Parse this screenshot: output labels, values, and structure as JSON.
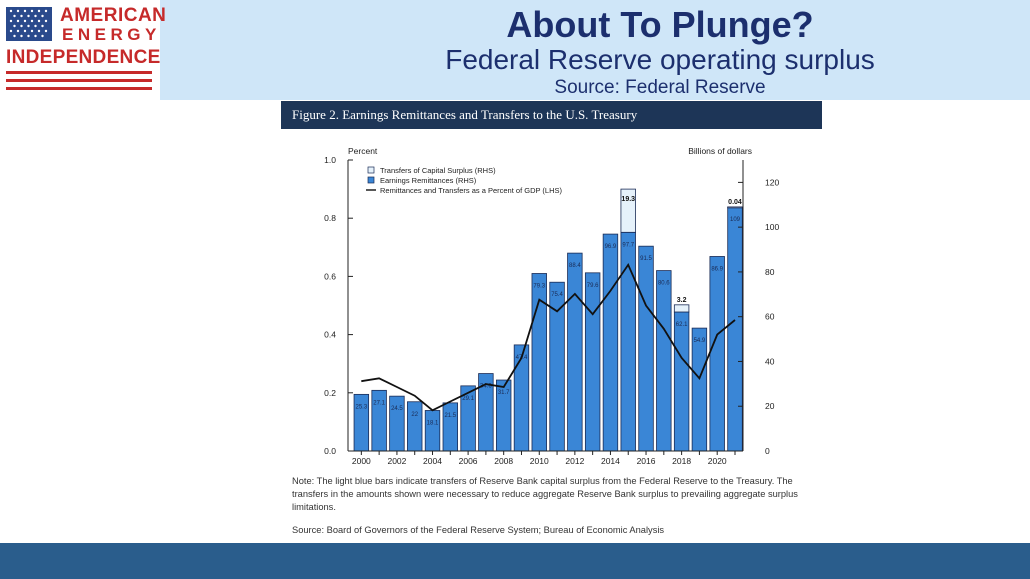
{
  "logo": {
    "line1": "AMERICAN",
    "line2": "ENERGY",
    "line3": "INDEPENDENCE",
    "colors": {
      "red": "#c62a2a",
      "blue": "#2a4a8c"
    }
  },
  "slide": {
    "title": "About To Plunge?",
    "subtitle": "Federal Reserve operating surplus",
    "source": "Source: Federal Reserve"
  },
  "figure": {
    "title": "Figure 2. Earnings Remittances and Transfers to the U.S. Treasury",
    "note": "Note: The light blue bars indicate transfers of Reserve Bank capital surplus from the Federal Reserve to the Treasury. The transfers in the amounts shown were necessary to reduce aggregate Reserve Bank surplus to prevailing aggregate surplus limitations.",
    "source": "Source: Board of Governors of the Federal Reserve System; Bureau of Economic Analysis"
  },
  "chart_data": {
    "type": "bar",
    "left_axis_label": "Percent",
    "right_axis_label": "Billions of dollars",
    "y_left_lim": [
      0,
      1.0
    ],
    "y_left_ticks": [
      "0.0",
      "0.2",
      "0.4",
      "0.6",
      "0.8",
      "1.0"
    ],
    "y_right_lim": [
      0,
      130
    ],
    "y_right_ticks": [
      "0",
      "20",
      "40",
      "60",
      "80",
      "100",
      "120"
    ],
    "x_tick_labels": [
      "2000",
      "2002",
      "2004",
      "2006",
      "2008",
      "2010",
      "2012",
      "2014",
      "2016",
      "2018",
      "2020"
    ],
    "years": [
      2000,
      2001,
      2002,
      2003,
      2004,
      2005,
      2006,
      2007,
      2008,
      2009,
      2010,
      2011,
      2012,
      2013,
      2014,
      2015,
      2016,
      2017,
      2018,
      2019,
      2020,
      2021
    ],
    "legend": [
      {
        "label": "Transfers of Capital Surplus (RHS)",
        "kind": "box-light"
      },
      {
        "label": "Earnings Remittances (RHS)",
        "kind": "box-blue"
      },
      {
        "label": "Remittances and Transfers as a Percent of GDP (LHS)",
        "kind": "line"
      }
    ],
    "series": [
      {
        "name": "Earnings Remittances (RHS)",
        "axis": "right",
        "color": "#3a86d6",
        "values": [
          25.3,
          27.1,
          24.5,
          22.0,
          18.1,
          21.5,
          29.1,
          34.6,
          31.7,
          47.4,
          79.3,
          75.4,
          88.4,
          79.6,
          96.9,
          97.7,
          91.5,
          80.6,
          62.1,
          54.9,
          86.9,
          109.0
        ],
        "labels": [
          "25.3",
          "27.1",
          "24.5",
          "22",
          "18.1",
          "21.5",
          "29.1",
          "34.6",
          "31.7",
          "47.4",
          "79.3",
          "75.4",
          "88.4",
          "79.6",
          "96.9",
          "97.7",
          "91.5",
          "80.6",
          "62.1",
          "54.9",
          "86.9",
          "109"
        ]
      },
      {
        "name": "Transfers of Capital Surplus (RHS)",
        "axis": "right",
        "color": "#e6f2fb",
        "values": [
          0,
          0,
          0,
          0,
          0,
          0,
          0,
          0,
          0,
          0,
          0,
          0,
          0,
          0,
          0,
          19.3,
          0,
          0,
          3.2,
          0,
          0,
          0.04
        ],
        "labels": [
          "",
          "",
          "",
          "",
          "",
          "",
          "",
          "",
          "",
          "",
          "",
          "",
          "",
          "",
          "",
          "19.3",
          "",
          "",
          "3.2",
          "",
          "",
          "0.04"
        ]
      },
      {
        "name": "Remittances and Transfers as a Percent of GDP (LHS)",
        "axis": "left",
        "color": "#111111",
        "values": [
          0.24,
          0.25,
          0.22,
          0.19,
          0.14,
          0.17,
          0.2,
          0.23,
          0.22,
          0.32,
          0.52,
          0.48,
          0.54,
          0.47,
          0.55,
          0.64,
          0.5,
          0.42,
          0.32,
          0.25,
          0.4,
          0.45
        ]
      }
    ]
  }
}
